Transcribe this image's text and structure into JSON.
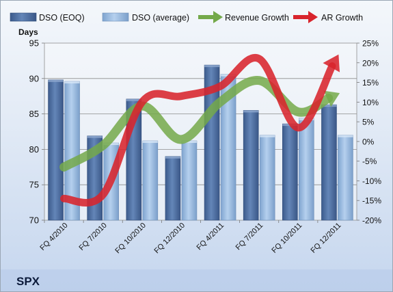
{
  "chart_data": {
    "type": "bar",
    "categories": [
      "FQ 4/2010",
      "FQ 7/2010",
      "FQ 10/2010",
      "FQ 12/2010",
      "FQ 4/2011",
      "FQ 7/2011",
      "FQ 10/2011",
      "FQ 12/2011"
    ],
    "series": [
      {
        "name": "DSO (EOQ)",
        "type": "bar",
        "axis": "left",
        "color": "#4f6fa0",
        "values": [
          89.8,
          81.9,
          87.1,
          79.0,
          91.9,
          85.5,
          83.6,
          86.3
        ]
      },
      {
        "name": "DSO (average)",
        "type": "bar",
        "axis": "left",
        "color": "#93b6dc",
        "values": [
          89.6,
          80.9,
          81.2,
          81.2,
          90.6,
          82.0,
          84.4,
          82.0
        ]
      },
      {
        "name": "Revenue Growth",
        "type": "line",
        "axis": "right",
        "color": "#74a94a",
        "values": [
          -6.5,
          -1.0,
          9.0,
          0.5,
          10.0,
          15.5,
          7.5,
          12.0
        ]
      },
      {
        "name": "AR Growth",
        "type": "line",
        "axis": "right",
        "color": "#d8242c",
        "values": [
          -14.5,
          -13.5,
          10.0,
          11.5,
          14.0,
          21.0,
          3.5,
          21.5
        ]
      }
    ],
    "ylabel": "Days",
    "ylim": [
      70,
      95
    ],
    "yticks": [
      70,
      75,
      80,
      85,
      90,
      95
    ],
    "y2lim": [
      -20,
      25
    ],
    "y2ticks": [
      "-20%",
      "-15%",
      "-10%",
      "-5%",
      "0%",
      "5%",
      "10%",
      "15%",
      "20%",
      "25%"
    ],
    "legend_position": "top",
    "grid": true
  },
  "brand": {
    "ticker": "SPX"
  }
}
